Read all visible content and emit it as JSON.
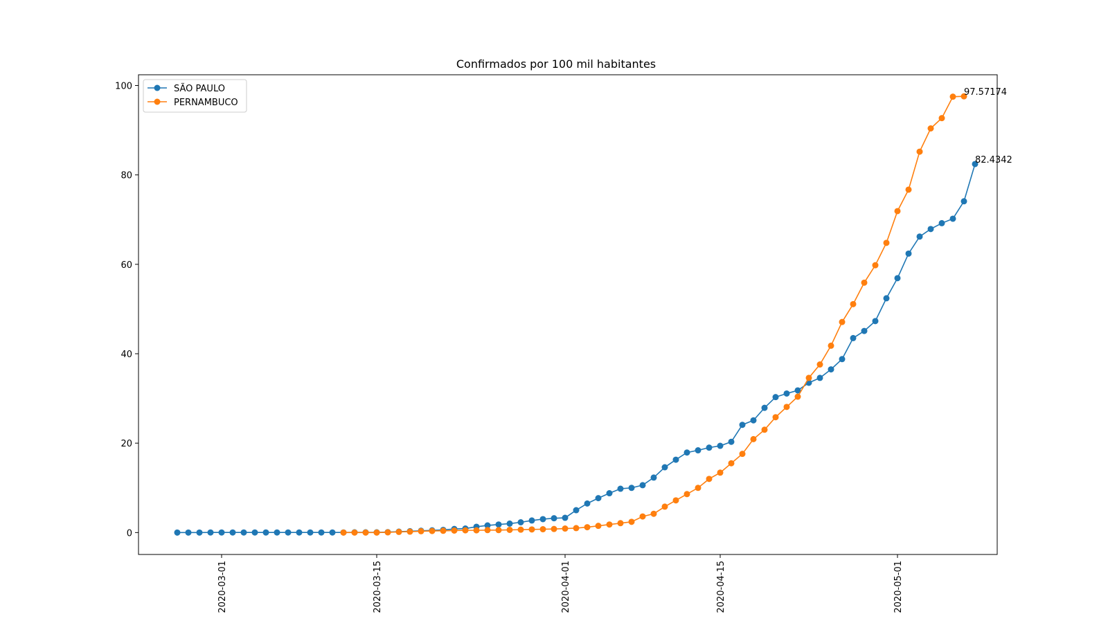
{
  "chart_data": {
    "type": "line",
    "title": "Confirmados por 100 mil habitantes",
    "xlabel": "",
    "ylabel": "",
    "x_start": "2020-02-26",
    "ylim": [
      -4.9,
      102.4
    ],
    "yticks": [
      0,
      20,
      40,
      60,
      80,
      100
    ],
    "xticks": [
      "2020-03-01",
      "2020-03-15",
      "2020-04-01",
      "2020-04-15",
      "2020-05-01"
    ],
    "grid": false,
    "legend_position": "upper left",
    "series": [
      {
        "name": "SÃO PAULO",
        "color": "#1f77b4",
        "start_date": "2020-02-26",
        "end_label": "82.4342",
        "values": [
          0.0,
          0.0,
          0.0,
          0.02,
          0.02,
          0.02,
          0.02,
          0.02,
          0.02,
          0.02,
          0.02,
          0.02,
          0.02,
          0.02,
          0.02,
          0.02,
          0.05,
          0.05,
          0.05,
          0.1,
          0.2,
          0.3,
          0.4,
          0.5,
          0.6,
          0.8,
          0.9,
          1.3,
          1.6,
          1.8,
          2.0,
          2.3,
          2.7,
          3.0,
          3.2,
          3.3,
          5.0,
          6.5,
          7.7,
          8.8,
          9.8,
          10.0,
          10.6,
          12.3,
          14.6,
          16.3,
          17.9,
          18.4,
          19.0,
          19.4,
          20.3,
          24.1,
          25.1,
          27.9,
          30.3,
          31.1,
          31.8,
          33.5,
          34.6,
          36.5,
          38.8,
          43.5,
          45.1,
          47.3,
          52.4,
          56.9,
          62.4,
          66.2,
          67.9,
          69.2,
          70.2,
          74.1,
          82.4342
        ]
      },
      {
        "name": "PERNAMBUCO",
        "color": "#ff7f0e",
        "start_date": "2020-03-12",
        "end_label": "97.57174",
        "values": [
          0.0,
          0.0,
          0.0,
          0.0,
          0.05,
          0.15,
          0.2,
          0.3,
          0.35,
          0.4,
          0.45,
          0.5,
          0.5,
          0.55,
          0.55,
          0.6,
          0.65,
          0.7,
          0.75,
          0.8,
          0.9,
          1.0,
          1.2,
          1.5,
          1.8,
          2.1,
          2.4,
          3.6,
          4.2,
          5.8,
          7.2,
          8.6,
          10.0,
          12.0,
          13.4,
          15.5,
          17.6,
          20.9,
          23.0,
          25.8,
          28.1,
          30.4,
          34.6,
          37.6,
          41.8,
          47.1,
          51.1,
          55.9,
          59.8,
          64.8,
          71.9,
          76.7,
          85.2,
          90.4,
          92.7,
          97.5,
          97.57174
        ]
      }
    ]
  }
}
